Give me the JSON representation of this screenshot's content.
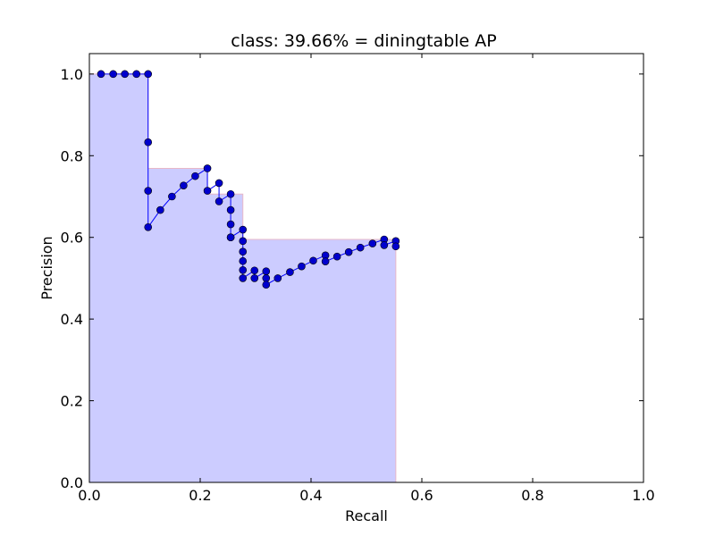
{
  "chart_data": {
    "type": "line",
    "title": "class: 39.66% = diningtable AP",
    "xlabel": "Recall",
    "ylabel": "Precision",
    "xlim": [
      0.0,
      1.0
    ],
    "ylim": [
      0.0,
      1.05
    ],
    "xticks": [
      0.0,
      0.2,
      0.4,
      0.6,
      0.8,
      1.0
    ],
    "yticks": [
      0.0,
      0.2,
      0.4,
      0.6,
      0.8,
      1.0
    ],
    "xtick_labels": [
      "0.0",
      "0.2",
      "0.4",
      "0.6",
      "0.8",
      "1.0"
    ],
    "ytick_labels": [
      "0.0",
      "0.2",
      "0.4",
      "0.6",
      "0.8",
      "1.0"
    ],
    "grid": false,
    "colors": {
      "line": "#0000ff",
      "marker": "#0000cd",
      "area": "#ccccff",
      "area_edge": "#e8b8c8"
    },
    "series": [
      {
        "x": [
          0.021,
          0.043,
          0.064,
          0.085,
          0.106,
          0.106,
          0.106,
          0.106,
          0.128,
          0.149,
          0.17,
          0.191,
          0.213,
          0.213,
          0.234,
          0.234,
          0.255,
          0.255,
          0.255,
          0.255,
          0.255,
          0.277,
          0.277,
          0.277,
          0.277,
          0.277,
          0.277,
          0.298,
          0.298,
          0.319,
          0.319,
          0.319,
          0.34,
          0.362,
          0.383,
          0.404,
          0.426,
          0.426,
          0.447,
          0.468,
          0.489,
          0.511,
          0.532,
          0.532,
          0.553,
          0.553
        ],
        "y": [
          1.0,
          1.0,
          1.0,
          1.0,
          1.0,
          0.833,
          0.714,
          0.625,
          0.667,
          0.7,
          0.727,
          0.75,
          0.769,
          0.714,
          0.733,
          0.688,
          0.706,
          0.667,
          0.632,
          0.6,
          0.6,
          0.619,
          0.591,
          0.565,
          0.542,
          0.52,
          0.5,
          0.519,
          0.5,
          0.517,
          0.5,
          0.484,
          0.5,
          0.515,
          0.529,
          0.543,
          0.556,
          0.541,
          0.553,
          0.564,
          0.575,
          0.585,
          0.595,
          0.581,
          0.591,
          0.578
        ]
      }
    ],
    "interpolated_precision": {
      "x": [
        0.0,
        0.106,
        0.106,
        0.213,
        0.213,
        0.277,
        0.277,
        0.553,
        0.553
      ],
      "y": [
        1.0,
        1.0,
        0.769,
        0.769,
        0.706,
        0.706,
        0.595,
        0.595,
        0.0
      ]
    }
  }
}
